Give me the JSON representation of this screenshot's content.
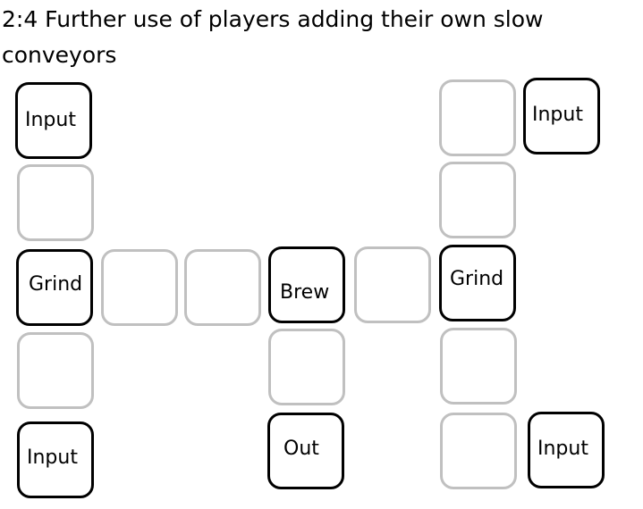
{
  "title": "2:4 Further use of players adding their own slow conveyors",
  "colors": {
    "machine_border": "#000000",
    "conveyor_border": "#c0c0c0",
    "background": "#ffffff"
  },
  "tiles": {
    "input_top_left": "Input",
    "input_top_right": "Input",
    "grind_left": "Grind",
    "grind_right": "Grind",
    "brew": "Brew",
    "input_bottom_left": "Input",
    "out": "Out",
    "input_bottom_right": "Input"
  }
}
